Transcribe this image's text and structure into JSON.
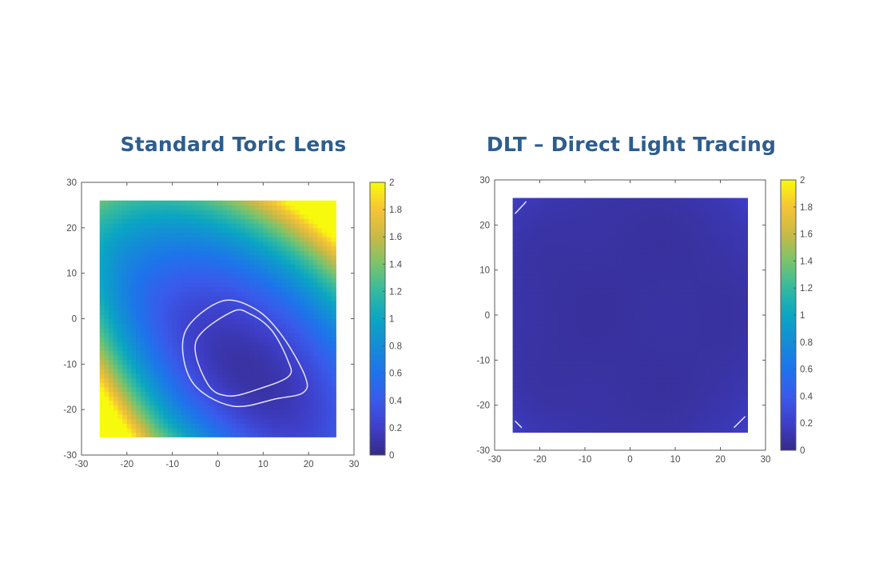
{
  "chart_data": [
    {
      "type": "heatmap",
      "title": "Standard Toric Lens",
      "xlim": [
        -30,
        30
      ],
      "ylim": [
        -30,
        30
      ],
      "xticks": [
        "-30",
        "-20",
        "-10",
        "0",
        "10",
        "20",
        "30"
      ],
      "yticks": [
        "30",
        "20",
        "10",
        "0",
        "-10",
        "-20",
        "-30"
      ],
      "data_extent": [
        -26,
        26
      ],
      "cell_size": 1,
      "colormap": "parula",
      "clim": [
        0,
        2
      ],
      "colorbar_ticks": [
        "2",
        "1.8",
        "1.6",
        "1.4",
        "1.2",
        "1",
        "0.8",
        "0.6",
        "0.4",
        "0.2",
        "0"
      ],
      "surface_model": {
        "description_minimum": [
          3,
          -8
        ],
        "min_value": 0.1,
        "top_right": 2,
        "bottom_left": 2,
        "top_left": 1.2,
        "bottom_right": 0.4
      },
      "contours": [
        [
          [
            3.1,
            1.5
          ],
          [
            7.2,
            1.0
          ],
          [
            11.9,
            -2.6
          ],
          [
            15.4,
            -9.1
          ],
          [
            15.7,
            -12.6
          ],
          [
            9.5,
            -15.3
          ],
          [
            2.5,
            -17
          ],
          [
            -2.2,
            -14.4
          ],
          [
            -4.8,
            -5
          ]
        ],
        [
          [
            0.7,
            3.8
          ],
          [
            8.3,
            2.1
          ],
          [
            14.2,
            -3.8
          ],
          [
            19.2,
            -12.6
          ],
          [
            18.9,
            -16.2
          ],
          [
            13,
            -17.6
          ],
          [
            3.1,
            -19.2
          ],
          [
            -5.7,
            -13.8
          ],
          [
            -7.3,
            -3.2
          ]
        ]
      ]
    },
    {
      "type": "heatmap",
      "title": "DLT – Direct Light Tracing",
      "xlim": [
        -30,
        30
      ],
      "ylim": [
        -30,
        30
      ],
      "xticks": [
        "-30",
        "-20",
        "-10",
        "0",
        "10",
        "20",
        "30"
      ],
      "yticks": [
        "30",
        "20",
        "10",
        "0",
        "-10",
        "-20",
        "-30"
      ],
      "data_extent": [
        -26,
        26
      ],
      "cell_size": 1,
      "colormap": "parula",
      "clim": [
        0,
        2
      ],
      "colorbar_ticks": [
        "2",
        "1.8",
        "1.6",
        "1.4",
        "1.2",
        "1",
        "0.8",
        "0.6",
        "0.4",
        "0.2",
        "0"
      ],
      "surface_model": {
        "center_value": 0.08,
        "corner_value": 0.18
      },
      "contours": [
        [
          [
            -25.5,
            22.5
          ],
          [
            -23,
            25.2
          ]
        ],
        [
          [
            -25.5,
            -23.5
          ],
          [
            -24,
            -25
          ]
        ],
        [
          [
            23,
            -25
          ],
          [
            25.5,
            -22.5
          ]
        ]
      ]
    }
  ],
  "colors": {
    "title": "#2d5d8e",
    "axis": "#5a5a5a",
    "contour": "#e8e4f4"
  }
}
